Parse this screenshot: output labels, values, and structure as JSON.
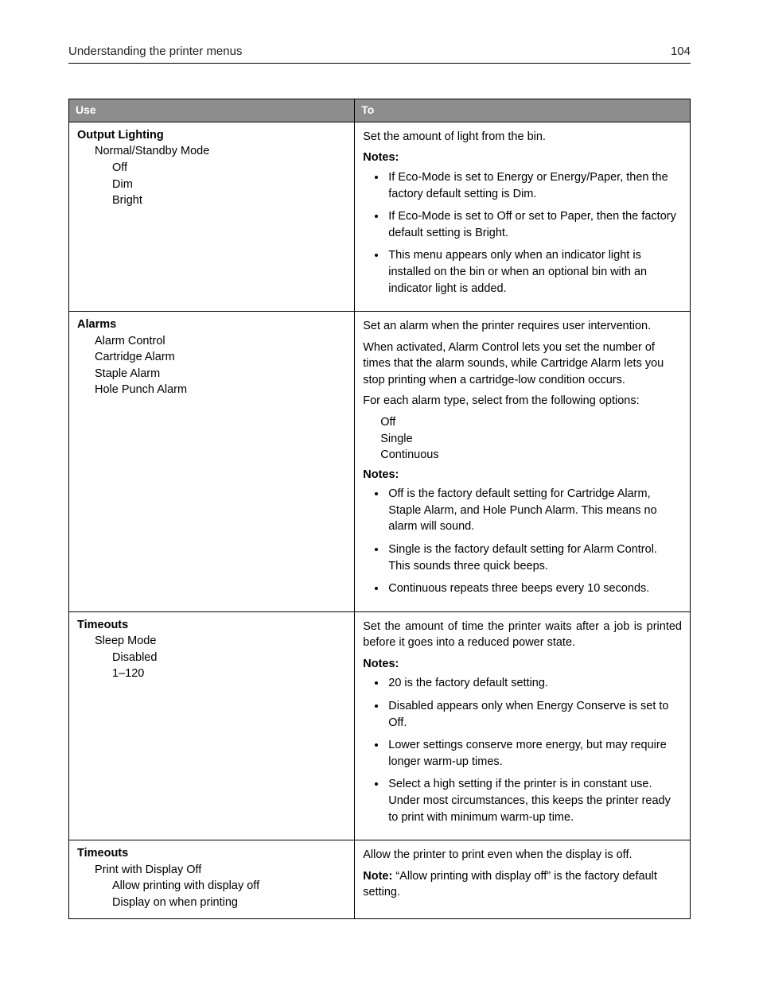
{
  "header": {
    "title": "Understanding the printer menus",
    "page_number": "104"
  },
  "table": {
    "columns": {
      "use": "Use",
      "to": "To"
    },
    "rows": [
      {
        "use": {
          "title": "Output Lighting",
          "level1": [
            "Normal/Standby Mode"
          ],
          "level2": [
            "Off",
            "Dim",
            "Bright"
          ]
        },
        "to": {
          "paragraphs": [
            "Set the amount of light from the bin."
          ],
          "notes_label": "Notes:",
          "notes": [
            "If Eco-Mode is set to Energy or Energy/Paper, then the factory default setting is Dim.",
            "If Eco-Mode is set to Off or set to Paper, then the factory default setting is Bright.",
            "This menu appears only when an indicator light is installed on the bin or when an optional bin with an indicator light is added."
          ]
        }
      },
      {
        "use": {
          "title": "Alarms",
          "level1": [
            "Alarm Control",
            "Cartridge Alarm",
            "Staple Alarm",
            "Hole Punch Alarm"
          ],
          "level2": []
        },
        "to": {
          "paragraphs": [
            "Set an alarm when the printer requires user intervention.",
            "When activated, Alarm Control lets you set the number of times that the alarm sounds, while Cartridge Alarm lets you stop printing when a cartridge-low condition occurs.",
            "For each alarm type, select from the following options:"
          ],
          "options": [
            "Off",
            "Single",
            "Continuous"
          ],
          "notes_label": "Notes:",
          "notes": [
            "Off is the factory default setting for Cartridge Alarm, Staple Alarm, and Hole Punch Alarm. This means no alarm will sound.",
            "Single is the factory default setting for Alarm Control. This sounds three quick beeps.",
            "Continuous repeats three beeps every 10 seconds."
          ]
        }
      },
      {
        "use": {
          "title": "Timeouts",
          "level1": [
            "Sleep Mode"
          ],
          "level2": [
            "Disabled",
            "1–120"
          ]
        },
        "to": {
          "paragraphs": [
            "Set the amount of time the printer waits after a job is printed before it goes into a reduced power state."
          ],
          "notes_label": "Notes:",
          "notes": [
            "20 is the factory default setting.",
            "Disabled appears only when Energy Conserve is set to Off.",
            "Lower settings conserve more energy, but may require longer warm-up times.",
            "Select a high setting if the printer is in constant use. Under most circumstances, this keeps the printer ready to print with minimum warm-up time."
          ]
        }
      },
      {
        "use": {
          "title": "Timeouts",
          "level1": [
            "Print with Display Off"
          ],
          "level2": [
            "Allow printing with display off",
            "Display on when printing"
          ]
        },
        "to": {
          "paragraphs": [
            "Allow the printer to print even when the display is off."
          ],
          "note_inline_label": "Note:",
          "note_inline_text": " “Allow printing with display off” is the factory default setting."
        }
      }
    ]
  }
}
